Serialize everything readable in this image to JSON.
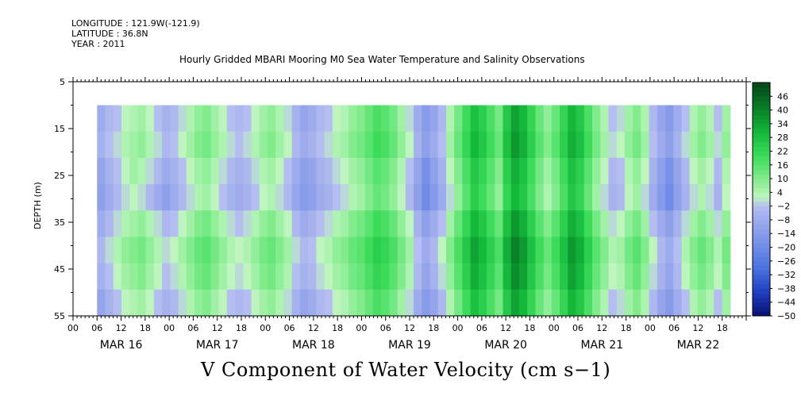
{
  "header": {
    "longitude": "LONGITUDE : 121.9W(-121.9)",
    "latitude": "LATITUDE : 36.8N",
    "year": "YEAR : 2011",
    "title": "Hourly Gridded MBARI Mooring M0 Sea Water Temperature and Salinity Observations"
  },
  "chart_data": {
    "type": "heatmap",
    "title": "V Component of Water Velocity (cm s−1)",
    "ylabel": "DEPTH (m)",
    "ylim": [
      55,
      5
    ],
    "y_ticks": [
      5,
      15,
      25,
      35,
      45,
      55
    ],
    "y_tick_labels": [
      "5",
      "15",
      "25",
      "35",
      "45",
      "55"
    ],
    "x_hour_labels": [
      "00",
      "06",
      "12",
      "18",
      "00",
      "06",
      "12",
      "18",
      "00",
      "06",
      "12",
      "18",
      "00",
      "06",
      "12",
      "18",
      "00",
      "06",
      "12",
      "18",
      "00",
      "06",
      "12",
      "18",
      "00",
      "06",
      "12",
      "18"
    ],
    "x_date_labels": [
      "MAR 16",
      "MAR 17",
      "MAR 18",
      "MAR 19",
      "MAR 20",
      "MAR 21",
      "MAR 22"
    ],
    "colorbar_labels": [
      "46",
      "40",
      "34",
      "28",
      "22",
      "16",
      "10",
      "4",
      "-2",
      "-8",
      "-14",
      "-20",
      "-26",
      "-32",
      "-38",
      "-44",
      "-50"
    ],
    "colorbar_range": [
      -50,
      52
    ],
    "data_depth_range": [
      10,
      55
    ],
    "data_time_hours": [
      6,
      164
    ],
    "velocity_matrix": [
      [
        -8,
        -4,
        -2,
        2,
        4,
        6,
        2,
        -2,
        -6,
        -4,
        0,
        4,
        8,
        10,
        6,
        2,
        -2,
        -4,
        -2,
        2,
        6,
        8,
        4,
        0,
        -6,
        -10,
        -8,
        -4,
        -2,
        2,
        4,
        8,
        10,
        14,
        18,
        16,
        12,
        6,
        0,
        -8,
        -14,
        -10,
        -4,
        4,
        12,
        20,
        28,
        24,
        18,
        12,
        26,
        34,
        30,
        22,
        14,
        8,
        14,
        22,
        30,
        26,
        18,
        10,
        4,
        -2,
        0,
        6,
        10,
        4,
        -4,
        -10,
        -14,
        -8,
        -2,
        4,
        8,
        4,
        -2,
        6
      ],
      [
        -6,
        -2,
        0,
        4,
        6,
        8,
        4,
        0,
        -4,
        -2,
        2,
        6,
        10,
        12,
        8,
        4,
        0,
        -2,
        0,
        4,
        8,
        10,
        6,
        2,
        -4,
        -8,
        -6,
        -2,
        0,
        4,
        6,
        10,
        12,
        16,
        20,
        18,
        14,
        8,
        2,
        -6,
        -12,
        -8,
        -2,
        6,
        14,
        22,
        30,
        26,
        20,
        14,
        28,
        36,
        32,
        24,
        16,
        10,
        16,
        24,
        32,
        28,
        20,
        12,
        6,
        0,
        2,
        8,
        12,
        6,
        -2,
        -8,
        -12,
        -6,
        0,
        6,
        10,
        6,
        0,
        8
      ],
      [
        -10,
        -6,
        -2,
        2,
        6,
        4,
        0,
        -4,
        -8,
        -6,
        -2,
        2,
        6,
        8,
        4,
        0,
        -4,
        -6,
        -4,
        0,
        4,
        6,
        2,
        -2,
        -8,
        -12,
        -10,
        -6,
        -4,
        0,
        2,
        6,
        8,
        12,
        16,
        14,
        10,
        4,
        -2,
        -10,
        -18,
        -12,
        -6,
        2,
        10,
        18,
        26,
        22,
        16,
        10,
        24,
        32,
        28,
        20,
        12,
        6,
        12,
        20,
        28,
        24,
        16,
        8,
        2,
        -4,
        -2,
        4,
        8,
        2,
        -6,
        -12,
        -18,
        -10,
        -4,
        2,
        6,
        2,
        -4,
        4
      ],
      [
        -12,
        -8,
        -4,
        0,
        2,
        0,
        -4,
        -8,
        -12,
        -8,
        -4,
        0,
        4,
        6,
        2,
        -2,
        -6,
        -8,
        -6,
        -2,
        2,
        4,
        0,
        -4,
        -10,
        -14,
        -12,
        -8,
        -6,
        -2,
        0,
        4,
        6,
        10,
        14,
        12,
        8,
        2,
        -4,
        -12,
        -20,
        -14,
        -8,
        0,
        8,
        16,
        24,
        20,
        14,
        8,
        22,
        30,
        26,
        18,
        10,
        4,
        10,
        18,
        26,
        22,
        14,
        6,
        0,
        -6,
        -4,
        2,
        6,
        0,
        -8,
        -14,
        -20,
        -12,
        -6,
        0,
        4,
        0,
        -6,
        2
      ],
      [
        -8,
        -4,
        0,
        4,
        6,
        8,
        4,
        0,
        -4,
        -2,
        2,
        6,
        10,
        12,
        8,
        4,
        0,
        -2,
        0,
        4,
        8,
        10,
        6,
        2,
        -4,
        -8,
        -6,
        -2,
        0,
        4,
        6,
        10,
        12,
        16,
        20,
        18,
        14,
        8,
        2,
        -6,
        -12,
        -8,
        -2,
        6,
        14,
        22,
        30,
        26,
        20,
        14,
        28,
        36,
        32,
        24,
        16,
        10,
        16,
        24,
        32,
        28,
        20,
        12,
        6,
        0,
        2,
        8,
        12,
        6,
        -2,
        -8,
        -12,
        -6,
        0,
        6,
        10,
        6,
        0,
        8
      ],
      [
        -4,
        0,
        4,
        8,
        10,
        12,
        8,
        4,
        0,
        2,
        6,
        10,
        14,
        16,
        12,
        8,
        4,
        2,
        4,
        8,
        12,
        14,
        10,
        6,
        0,
        -4,
        -2,
        2,
        4,
        8,
        10,
        14,
        16,
        20,
        24,
        22,
        18,
        12,
        6,
        -2,
        -8,
        -4,
        2,
        10,
        18,
        26,
        34,
        30,
        24,
        18,
        32,
        40,
        36,
        28,
        20,
        14,
        20,
        28,
        36,
        32,
        24,
        16,
        10,
        4,
        6,
        12,
        16,
        10,
        2,
        -4,
        -8,
        -2,
        4,
        10,
        14,
        10,
        4,
        12
      ],
      [
        -6,
        -2,
        2,
        6,
        8,
        10,
        6,
        2,
        -2,
        0,
        4,
        8,
        12,
        14,
        10,
        6,
        2,
        0,
        2,
        6,
        10,
        12,
        8,
        4,
        -2,
        -6,
        -4,
        0,
        2,
        6,
        8,
        12,
        14,
        18,
        22,
        20,
        16,
        10,
        4,
        -4,
        -10,
        -6,
        0,
        8,
        16,
        24,
        32,
        28,
        22,
        16,
        30,
        38,
        34,
        26,
        18,
        12,
        18,
        26,
        34,
        30,
        22,
        14,
        8,
        2,
        4,
        10,
        14,
        8,
        0,
        -6,
        -10,
        -4,
        2,
        8,
        12,
        8,
        2,
        10
      ],
      [
        -10,
        -6,
        -2,
        2,
        4,
        6,
        2,
        -2,
        -6,
        -4,
        0,
        4,
        8,
        10,
        6,
        2,
        -2,
        -4,
        -2,
        2,
        6,
        8,
        4,
        0,
        -6,
        -10,
        -8,
        -4,
        -2,
        2,
        4,
        8,
        10,
        14,
        18,
        16,
        12,
        6,
        0,
        -8,
        -14,
        -10,
        -4,
        4,
        12,
        20,
        28,
        24,
        18,
        12,
        26,
        34,
        30,
        22,
        14,
        8,
        14,
        22,
        30,
        26,
        18,
        10,
        4,
        -2,
        0,
        6,
        10,
        4,
        -4,
        -10,
        -14,
        -8,
        -2,
        4,
        8,
        4,
        -2,
        6
      ]
    ]
  }
}
